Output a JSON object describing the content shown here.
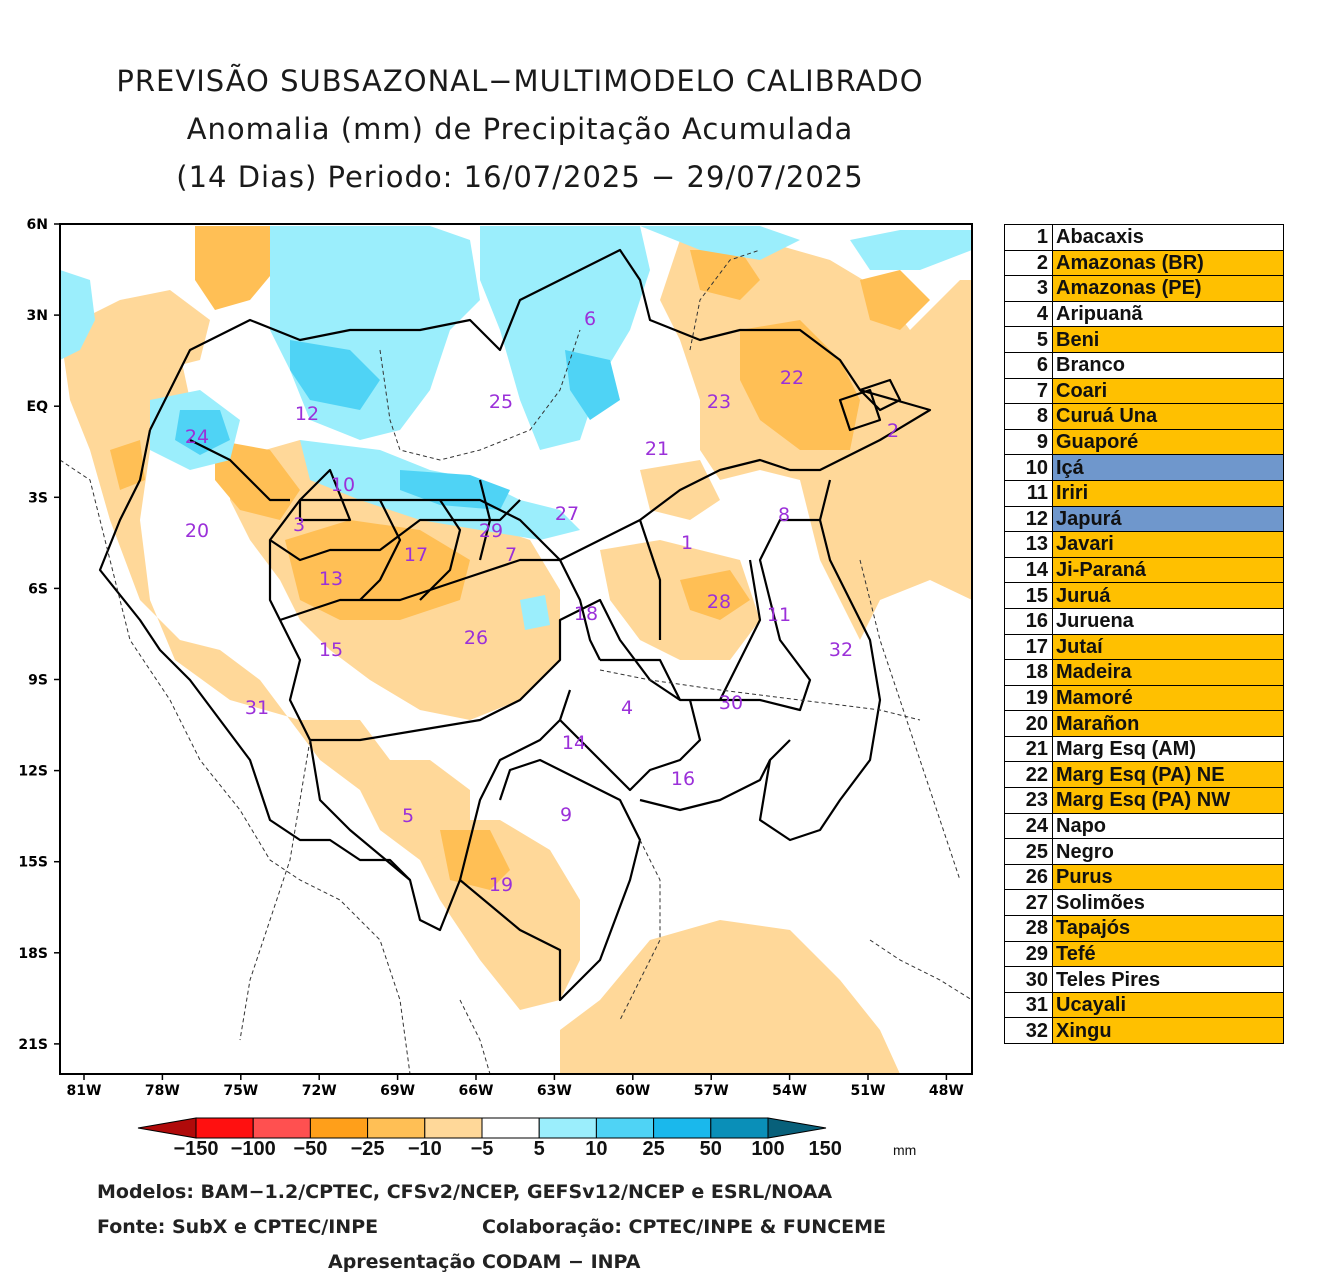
{
  "title": {
    "line1": "PREVISÃO SUBSAZONAL−MULTIMODELO CALIBRADO",
    "line2": "Anomalia (mm) de Precipitação Acumulada",
    "line3": "(14 Dias) Periodo: 16/07/2025 − 29/07/2025"
  },
  "axes": {
    "y_labels": [
      "6N",
      "3N",
      "EQ",
      "3S",
      "6S",
      "9S",
      "12S",
      "15S",
      "18S",
      "21S"
    ],
    "x_labels": [
      "81W",
      "78W",
      "75W",
      "72W",
      "69W",
      "66W",
      "63W",
      "60W",
      "57W",
      "54W",
      "51W",
      "48W"
    ]
  },
  "colorbar": {
    "labels": [
      "−150",
      "−100",
      "−50",
      "−25",
      "−10",
      "−5",
      "5",
      "10",
      "25",
      "50",
      "100",
      "150"
    ],
    "unit": "mm",
    "colors": [
      "#b00a0a",
      "#ff1010",
      "#ff5050",
      "#ff9f1a",
      "#ffbf55",
      "#ffd899",
      "#ffffff",
      "#9beefc",
      "#4fd3f5",
      "#1ab8ec",
      "#0a8fb8",
      "#08607a"
    ]
  },
  "basins": [
    {
      "num": "1",
      "name": "Abacaxis",
      "color": "#ffffff"
    },
    {
      "num": "2",
      "name": "Amazonas (BR)",
      "color": "#ffc000"
    },
    {
      "num": "3",
      "name": "Amazonas (PE)",
      "color": "#ffc000"
    },
    {
      "num": "4",
      "name": "Aripuanã",
      "color": "#ffffff"
    },
    {
      "num": "5",
      "name": "Beni",
      "color": "#ffc000"
    },
    {
      "num": "6",
      "name": "Branco",
      "color": "#ffffff"
    },
    {
      "num": "7",
      "name": "Coari",
      "color": "#ffc000"
    },
    {
      "num": "8",
      "name": "Curuá Una",
      "color": "#ffc000"
    },
    {
      "num": "9",
      "name": "Guaporé",
      "color": "#ffc000"
    },
    {
      "num": "10",
      "name": "Içá",
      "color": "#6f97cc"
    },
    {
      "num": "11",
      "name": "Iriri",
      "color": "#ffc000"
    },
    {
      "num": "12",
      "name": "Japurá",
      "color": "#6f97cc"
    },
    {
      "num": "13",
      "name": "Javari",
      "color": "#ffc000"
    },
    {
      "num": "14",
      "name": "Ji-Paraná",
      "color": "#ffc000"
    },
    {
      "num": "15",
      "name": "Juruá",
      "color": "#ffc000"
    },
    {
      "num": "16",
      "name": "Juruena",
      "color": "#ffffff"
    },
    {
      "num": "17",
      "name": "Jutaí",
      "color": "#ffc000"
    },
    {
      "num": "18",
      "name": "Madeira",
      "color": "#ffc000"
    },
    {
      "num": "19",
      "name": "Mamoré",
      "color": "#ffc000"
    },
    {
      "num": "20",
      "name": "Marañon",
      "color": "#ffc000"
    },
    {
      "num": "21",
      "name": "Marg Esq (AM)",
      "color": "#ffffff"
    },
    {
      "num": "22",
      "name": "Marg Esq (PA) NE",
      "color": "#ffc000"
    },
    {
      "num": "23",
      "name": "Marg Esq (PA) NW",
      "color": "#ffc000"
    },
    {
      "num": "24",
      "name": "Napo",
      "color": "#ffffff"
    },
    {
      "num": "25",
      "name": "Negro",
      "color": "#ffffff"
    },
    {
      "num": "26",
      "name": "Purus",
      "color": "#ffc000"
    },
    {
      "num": "27",
      "name": "Solimões",
      "color": "#ffffff"
    },
    {
      "num": "28",
      "name": "Tapajós",
      "color": "#ffc000"
    },
    {
      "num": "29",
      "name": "Tefé",
      "color": "#ffc000"
    },
    {
      "num": "30",
      "name": "Teles Pires",
      "color": "#ffffff"
    },
    {
      "num": "31",
      "name": "Ucayali",
      "color": "#ffc000"
    },
    {
      "num": "32",
      "name": "Xingu",
      "color": "#ffc000"
    }
  ],
  "footer": {
    "models": "Modelos: BAM−1.2/CPTEC, CFSv2/NCEP, GEFSv12/NCEP e ESRL/NOAA",
    "source": "Fonte: SubX e CPTEC/INPE",
    "collab": "Colaboração: CPTEC/INPE & FUNCEME",
    "presentation": "Apresentação CODAM − INPA"
  },
  "colors": {
    "neg_light": "#ffd899",
    "neg_mid": "#ffbf55",
    "pos_light": "#9beefc",
    "pos_mid": "#4fd3f5",
    "label": "#9b30d9"
  }
}
